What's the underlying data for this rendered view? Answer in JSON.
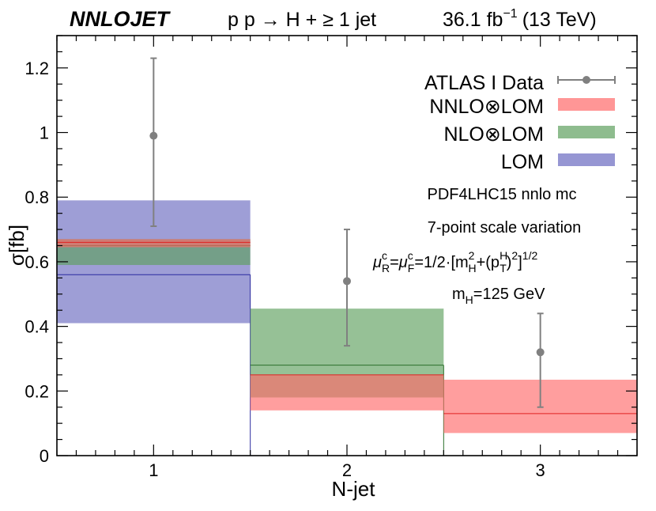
{
  "chart_data": {
    "type": "bar",
    "header": {
      "logo": "NNLOJET",
      "process": "p p → H + ≥ 1 jet",
      "lumi": "36.1 fb",
      "lumi_exp": "−1",
      "energy": "(13 TeV)"
    },
    "xlabel": "N-jet",
    "ylabel": "σ[fb]",
    "xlim": [
      0.5,
      3.5
    ],
    "ylim": [
      0,
      1.3
    ],
    "y_ticks": [
      0,
      0.2,
      0.4,
      0.6,
      0.8,
      1,
      1.2
    ],
    "y_tick_labels": [
      "0",
      "0.2",
      "0.4",
      "0.6",
      "0.8",
      "1",
      "1.2"
    ],
    "x_ticks": [
      1,
      2,
      3
    ],
    "x_tick_labels": [
      "1",
      "2",
      "3"
    ],
    "bins": [
      {
        "lo": 0.5,
        "hi": 1.5
      },
      {
        "lo": 1.5,
        "hi": 2.5
      },
      {
        "lo": 2.5,
        "hi": 3.5
      }
    ],
    "data": {
      "name": "ATLAS I Data",
      "color": "#808080",
      "points": [
        {
          "x": 1,
          "y": 0.99,
          "ylo": 0.71,
          "yhi": 1.23
        },
        {
          "x": 2,
          "y": 0.54,
          "ylo": 0.34,
          "yhi": 0.7
        },
        {
          "x": 3,
          "y": 0.32,
          "ylo": 0.15,
          "yhi": 0.44
        }
      ]
    },
    "series": [
      {
        "name": "LOM",
        "color": "#6a6ac0",
        "line_color": "#2a2aa0",
        "values": [
          0.56,
          null,
          null
        ],
        "band_lo": [
          0.41,
          null,
          null
        ],
        "band_hi": [
          0.79,
          null,
          null
        ]
      },
      {
        "name": "NLO⊗LOM",
        "color": "#5ea05e",
        "line_color": "#2a702a",
        "values": [
          0.65,
          0.28,
          null
        ],
        "band_lo": [
          0.59,
          0.18,
          null
        ],
        "band_hi": [
          0.67,
          0.455,
          null
        ]
      },
      {
        "name": "NNLO⊗LOM",
        "color": "#ff6a6a",
        "line_color": "#e02020",
        "values": [
          0.66,
          0.25,
          0.13
        ],
        "band_lo": [
          0.645,
          0.14,
          0.07
        ],
        "band_hi": [
          0.67,
          0.25,
          0.235
        ]
      }
    ],
    "legend_order": [
      "ATLAS I Data",
      "NNLO⊗LOM",
      "NLO⊗LOM",
      "LOM"
    ],
    "annotations": [
      "PDF4LHC15 nnlo mc",
      "7-point scale variation",
      "m",
      "H",
      "=125 GeV"
    ],
    "scale_formula": {
      "mu": "μ",
      "R": "R",
      "F": "F",
      "c": "c",
      "eq": "=",
      "eq2": "=1/2·[m",
      "H": "H",
      "two": "2",
      "plus": "+(p",
      "T": "T",
      "close": ")",
      "close2": "]",
      "half": "1/2"
    }
  }
}
